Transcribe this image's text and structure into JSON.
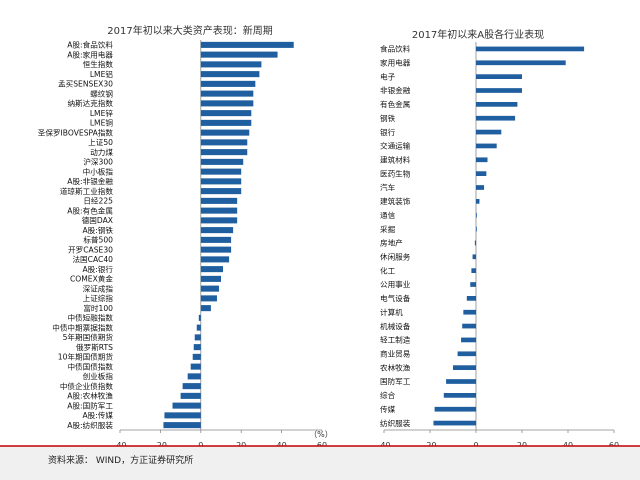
{
  "source": "资料来源：  WIND，方正证券研究所",
  "colors": {
    "bar": "#1f5fa0",
    "axis": "#888888",
    "footer_line": "#c00000",
    "footer_bg": "#f0f0f0"
  },
  "chart_data": [
    {
      "type": "bar",
      "orientation": "horizontal",
      "title": "2017年初以来大类资产表现：新周期",
      "unit_label": "（%）",
      "xlim": [
        -40,
        60
      ],
      "xticks": [
        -40,
        -20,
        0,
        20,
        40,
        60
      ],
      "categories": [
        "A股:食品饮料",
        "A股:家用电器",
        "恒生指数",
        "LME铝",
        "孟买SENSEX30",
        "螺纹钢",
        "纳斯达克指数",
        "LME锌",
        "LME铜",
        "圣保罗IBOVESPA指数",
        "上证50",
        "动力煤",
        "沪深300",
        "中小板指",
        "A股:非银金融",
        "道琼斯工业指数",
        "日经225",
        "A股:有色金属",
        "德国DAX",
        "A股:钢铁",
        "标普500",
        "开罗CASE30",
        "法国CAC40",
        "A股:银行",
        "COMEX黄金",
        "深证成指",
        "上证综指",
        "富时100",
        "中债短融指数",
        "中债中期票据指数",
        "5年期国债期货",
        "俄罗斯RTS",
        "10年期国债期货",
        "中债国债指数",
        "创业板指",
        "中债企业债指数",
        "A股:农林牧渔",
        "A股:国防军工",
        "A股:传媒",
        "A股:纺织服装"
      ],
      "values": [
        46,
        38,
        30,
        29,
        27,
        26,
        26,
        25,
        25,
        24,
        23,
        23,
        21,
        20,
        20,
        20,
        18,
        18,
        18,
        16,
        15,
        15,
        14,
        11,
        10,
        9,
        8,
        5,
        -1,
        -2,
        -3,
        -3.5,
        -4,
        -5,
        -6.5,
        -9,
        -10,
        -14,
        -18,
        -18.5
      ]
    },
    {
      "type": "bar",
      "orientation": "horizontal",
      "title": "2017年初以来A股各行业表现",
      "xlim": [
        -40,
        60
      ],
      "xticks": [
        -40,
        -20,
        0,
        20,
        40,
        60
      ],
      "categories": [
        "食品饮料",
        "家用电器",
        "电子",
        "非银金融",
        "有色金属",
        "钢铁",
        "银行",
        "交通运输",
        "建筑材料",
        "医药生物",
        "汽车",
        "建筑装饰",
        "通信",
        "采掘",
        "房地产",
        "休闲服务",
        "化工",
        "公用事业",
        "电气设备",
        "计算机",
        "机械设备",
        "轻工制造",
        "商业贸易",
        "农林牧渔",
        "国防军工",
        "综合",
        "传媒",
        "纺织服装"
      ],
      "values": [
        47,
        39,
        20,
        20,
        18,
        17,
        11,
        9,
        5,
        4.5,
        3.5,
        1.5,
        0.3,
        0.2,
        -0.5,
        -1.5,
        -2,
        -2.5,
        -4,
        -5.5,
        -6,
        -6.5,
        -8,
        -10,
        -13,
        -14,
        -18,
        -18.5
      ]
    }
  ]
}
